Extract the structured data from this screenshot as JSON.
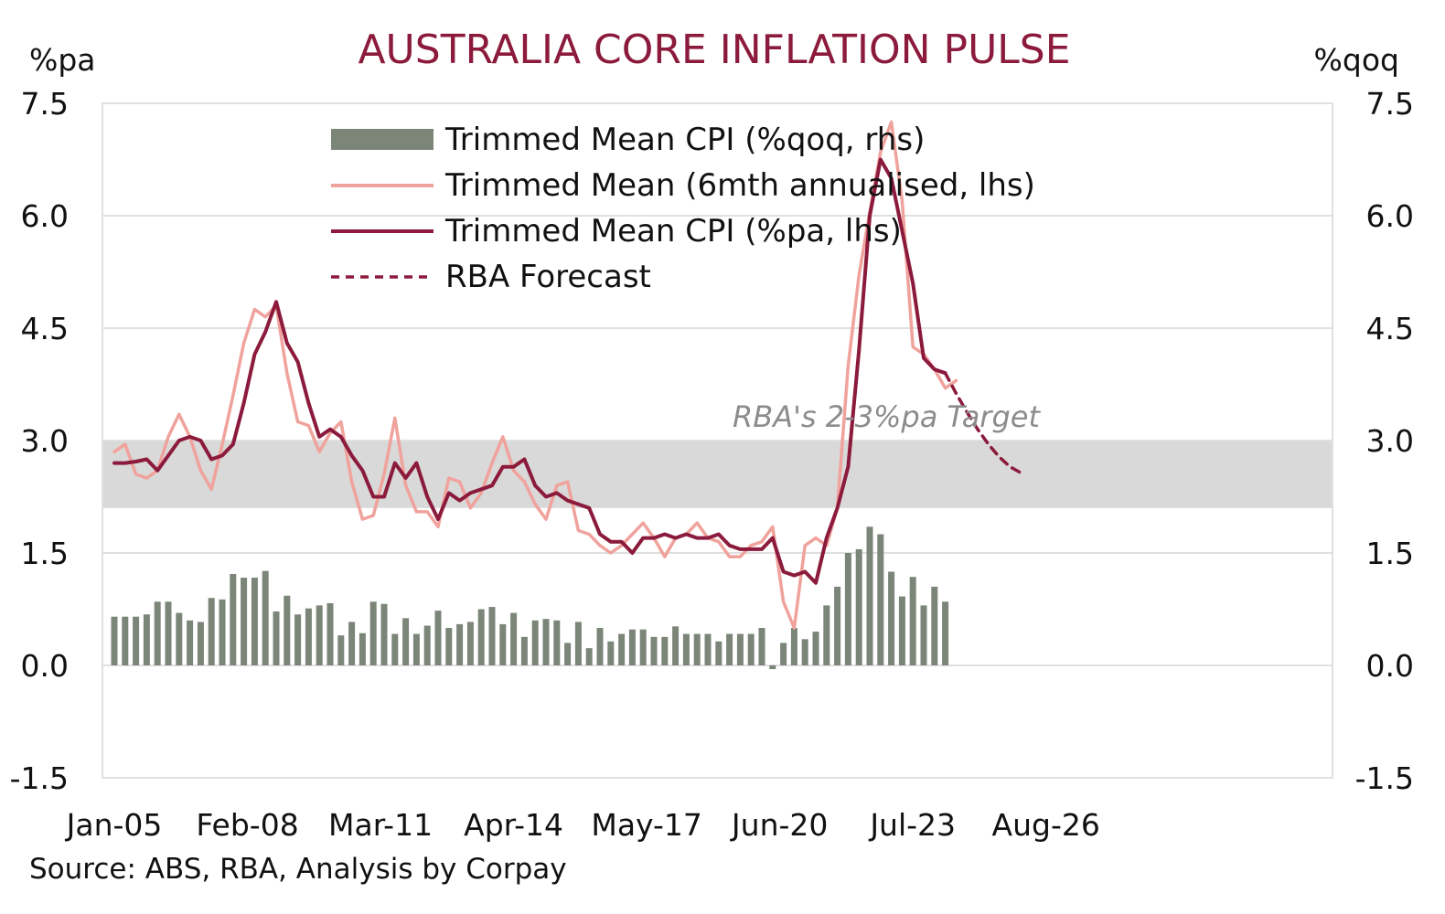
{
  "chart_data": {
    "type": "bar+line",
    "title": "AUSTRALIA CORE INFLATION PULSE",
    "left_axis_unit": "%pa",
    "right_axis_unit": "%qoq",
    "y_ticks": [
      "7.5",
      "6.0",
      "4.5",
      "3.0",
      "1.5",
      "0.0",
      "-1.5"
    ],
    "ylim": [
      -1.5,
      7.5
    ],
    "x_ticks": [
      "Jan-05",
      "Feb-08",
      "Mar-11",
      "Apr-14",
      "May-17",
      "Jun-20",
      "Jul-23",
      "Aug-26"
    ],
    "target_band": {
      "label": "RBA's 2-3%pa Target",
      "low": 2.1,
      "high": 3.0
    },
    "grid": true,
    "legend_position": "top-center",
    "source": "Source: ABS, RBA, Analysis by Corpay",
    "colors": {
      "title": "#8b1a3c",
      "bars": "#7b8578",
      "six_month": "#f0a29c",
      "annual": "#8b1a3c",
      "forecast": "#8b1a3c",
      "band": "#d9d9d9",
      "grid": "#e0e0e0"
    },
    "series": [
      {
        "name": "Trimmed Mean CPI (%qoq, rhs)",
        "kind": "bar",
        "start_quarter_index": 0,
        "values": [
          0.65,
          0.65,
          0.65,
          0.68,
          0.85,
          0.85,
          0.7,
          0.6,
          0.58,
          0.9,
          0.88,
          1.22,
          1.17,
          1.17,
          1.26,
          0.72,
          0.93,
          0.68,
          0.76,
          0.8,
          0.83,
          0.4,
          0.58,
          0.43,
          0.85,
          0.82,
          0.42,
          0.63,
          0.42,
          0.53,
          0.73,
          0.5,
          0.55,
          0.58,
          0.75,
          0.78,
          0.55,
          0.7,
          0.38,
          0.6,
          0.62,
          0.6,
          0.3,
          0.58,
          0.23,
          0.5,
          0.32,
          0.42,
          0.48,
          0.48,
          0.38,
          0.38,
          0.52,
          0.42,
          0.42,
          0.42,
          0.32,
          0.42,
          0.42,
          0.42,
          0.5,
          -0.05,
          0.3,
          0.5,
          0.35,
          0.45,
          0.8,
          1.05,
          1.5,
          1.55,
          1.85,
          1.75,
          1.25,
          0.92,
          1.18,
          0.8,
          1.05,
          0.85
        ]
      },
      {
        "name": "Trimmed Mean (6mth annualised, lhs)",
        "kind": "line",
        "start_quarter_index": 0,
        "values": [
          2.85,
          2.95,
          2.55,
          2.5,
          2.6,
          3.05,
          3.35,
          3.05,
          2.6,
          2.35,
          2.95,
          3.6,
          4.3,
          4.75,
          4.65,
          4.8,
          3.9,
          3.25,
          3.2,
          2.85,
          3.1,
          3.25,
          2.45,
          1.95,
          2.0,
          2.55,
          3.3,
          2.4,
          2.05,
          2.05,
          1.85,
          2.5,
          2.45,
          2.1,
          2.3,
          2.7,
          3.05,
          2.6,
          2.45,
          2.15,
          1.95,
          2.4,
          2.45,
          1.8,
          1.75,
          1.6,
          1.5,
          1.6,
          1.75,
          1.9,
          1.7,
          1.45,
          1.7,
          1.75,
          1.9,
          1.7,
          1.65,
          1.45,
          1.45,
          1.6,
          1.65,
          1.85,
          0.85,
          0.5,
          1.6,
          1.7,
          1.6,
          2.1,
          4.0,
          5.2,
          6.05,
          6.85,
          7.25,
          6.2,
          4.25,
          4.15,
          3.95,
          3.7,
          3.8
        ]
      },
      {
        "name": "Trimmed Mean CPI (%pa, lhs)",
        "kind": "line",
        "start_quarter_index": 0,
        "values": [
          2.7,
          2.7,
          2.72,
          2.75,
          2.6,
          2.8,
          3.0,
          3.05,
          3.0,
          2.75,
          2.8,
          2.95,
          3.5,
          4.15,
          4.45,
          4.85,
          4.3,
          4.05,
          3.5,
          3.05,
          3.15,
          3.05,
          2.8,
          2.6,
          2.25,
          2.25,
          2.7,
          2.5,
          2.7,
          2.25,
          1.95,
          2.3,
          2.2,
          2.3,
          2.35,
          2.4,
          2.65,
          2.65,
          2.75,
          2.4,
          2.25,
          2.3,
          2.2,
          2.15,
          2.1,
          1.75,
          1.65,
          1.65,
          1.5,
          1.7,
          1.7,
          1.75,
          1.7,
          1.75,
          1.7,
          1.7,
          1.75,
          1.6,
          1.55,
          1.55,
          1.55,
          1.7,
          1.25,
          1.2,
          1.25,
          1.1,
          1.7,
          2.1,
          2.65,
          4.2,
          6.0,
          6.75,
          6.5,
          5.8,
          5.1,
          4.1,
          3.95,
          3.9
        ]
      },
      {
        "name": "RBA Forecast",
        "kind": "dashed-line",
        "start_quarter_index": 77,
        "values": [
          3.9,
          3.63,
          3.38,
          3.15,
          2.95,
          2.78,
          2.65,
          2.57
        ]
      }
    ]
  }
}
